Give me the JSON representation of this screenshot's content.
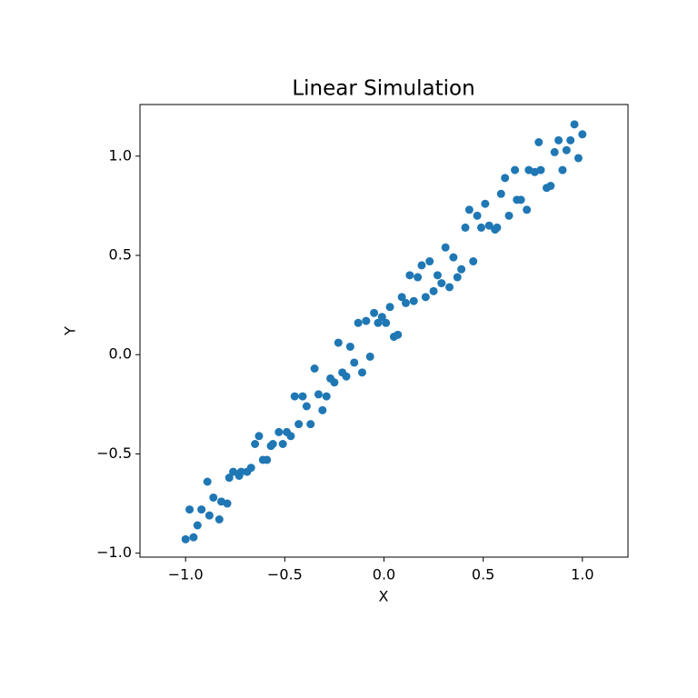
{
  "chart_data": {
    "type": "scatter",
    "title": "Linear Simulation",
    "x_label": "X",
    "y_label": "Y",
    "color": "#1f77b4",
    "x": [
      -1.0,
      -0.98,
      -0.96,
      -0.94,
      -0.92,
      -0.89,
      -0.88,
      -0.86,
      -0.83,
      -0.82,
      -0.79,
      -0.78,
      -0.76,
      -0.73,
      -0.72,
      -0.69,
      -0.67,
      -0.65,
      -0.63,
      -0.61,
      -0.59,
      -0.57,
      -0.56,
      -0.53,
      -0.51,
      -0.49,
      -0.47,
      -0.45,
      -0.43,
      -0.41,
      -0.39,
      -0.37,
      -0.35,
      -0.33,
      -0.31,
      -0.29,
      -0.27,
      -0.25,
      -0.23,
      -0.21,
      -0.19,
      -0.17,
      -0.15,
      -0.13,
      -0.11,
      -0.09,
      -0.07,
      -0.05,
      -0.03,
      -0.01,
      0.01,
      0.03,
      0.05,
      0.07,
      0.09,
      0.11,
      0.13,
      0.15,
      0.17,
      0.19,
      0.21,
      0.23,
      0.25,
      0.27,
      0.29,
      0.31,
      0.33,
      0.35,
      0.37,
      0.39,
      0.41,
      0.43,
      0.45,
      0.47,
      0.49,
      0.51,
      0.53,
      0.56,
      0.57,
      0.59,
      0.61,
      0.63,
      0.66,
      0.67,
      0.69,
      0.72,
      0.73,
      0.76,
      0.78,
      0.79,
      0.82,
      0.84,
      0.86,
      0.88,
      0.9,
      0.92,
      0.94,
      0.96,
      0.98,
      1.0
    ],
    "y": [
      -0.93,
      -0.78,
      -0.92,
      -0.86,
      -0.78,
      -0.64,
      -0.81,
      -0.72,
      -0.83,
      -0.74,
      -0.75,
      -0.62,
      -0.59,
      -0.61,
      -0.59,
      -0.59,
      -0.57,
      -0.45,
      -0.41,
      -0.53,
      -0.53,
      -0.46,
      -0.45,
      -0.39,
      -0.45,
      -0.39,
      -0.41,
      -0.21,
      -0.35,
      -0.21,
      -0.26,
      -0.35,
      -0.07,
      -0.2,
      -0.28,
      -0.21,
      -0.12,
      -0.14,
      0.06,
      -0.09,
      -0.11,
      0.04,
      -0.04,
      0.16,
      -0.09,
      0.17,
      -0.01,
      0.21,
      0.16,
      0.19,
      0.16,
      0.24,
      0.09,
      0.1,
      0.29,
      0.26,
      0.4,
      0.27,
      0.39,
      0.45,
      0.29,
      0.47,
      0.32,
      0.4,
      0.36,
      0.54,
      0.34,
      0.49,
      0.39,
      0.43,
      0.64,
      0.73,
      0.47,
      0.7,
      0.64,
      0.76,
      0.65,
      0.63,
      0.64,
      0.81,
      0.89,
      0.7,
      0.93,
      0.78,
      0.78,
      0.73,
      0.93,
      0.92,
      1.07,
      0.93,
      0.84,
      0.85,
      1.02,
      1.08,
      0.93,
      1.03,
      1.08,
      1.16,
      0.99,
      1.11
    ],
    "xlim": [
      -1.23,
      1.23
    ],
    "ylim": [
      -1.02,
      1.26
    ],
    "xticks": [
      {
        "value": -1.0,
        "label": "−1.0"
      },
      {
        "value": -0.5,
        "label": "−0.5"
      },
      {
        "value": 0.0,
        "label": "0.0"
      },
      0.5,
      {
        "value": 1.0,
        "label": "1.0"
      }
    ],
    "yticks": [
      {
        "value": -1.0,
        "label": "−1.0"
      },
      {
        "value": -0.5,
        "label": "−0.5"
      },
      {
        "value": 0.0,
        "label": "0.0"
      },
      0.5,
      {
        "value": 1.0,
        "label": "1.0"
      }
    ]
  }
}
